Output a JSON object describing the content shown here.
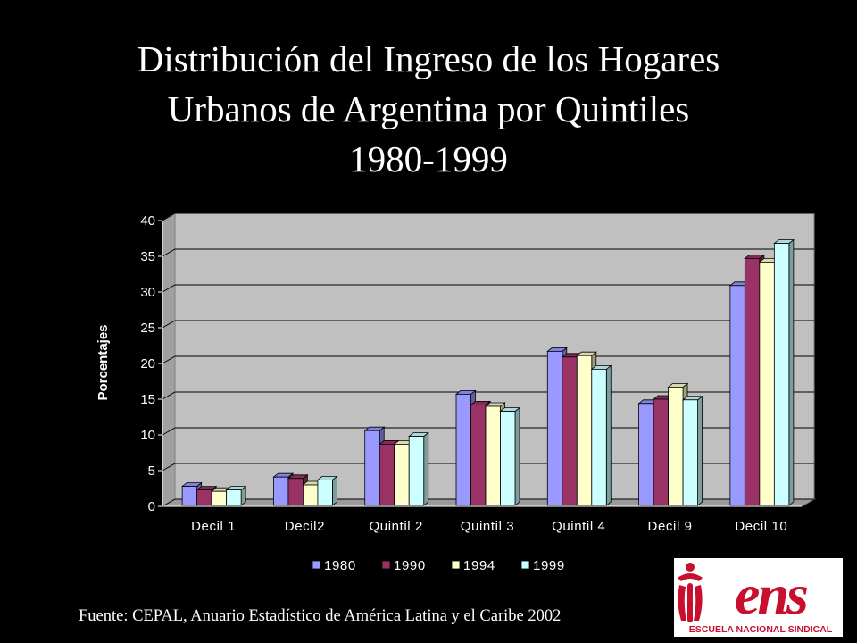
{
  "title_lines": [
    "Distribución del Ingreso de los Hogares",
    "Urbanos de Argentina por Quintiles",
    "1980-1999"
  ],
  "chart_data": {
    "type": "bar",
    "title": "Distribución del Ingreso de los Hogares Urbanos de Argentina por Quintiles 1980-1999",
    "xlabel": "",
    "ylabel": "Porcentajes",
    "ylim": [
      0,
      40
    ],
    "yticks": [
      0,
      5,
      10,
      15,
      20,
      25,
      30,
      35,
      40
    ],
    "grid": true,
    "legend_position": "bottom",
    "categories": [
      "Decil 1",
      "Decil2",
      "Quintil 2",
      "Quintil 3",
      "Quintil 4",
      "Decil 9",
      "Decil 10"
    ],
    "series": [
      {
        "name": "1980",
        "color": "#9999ff",
        "values": [
          2.8,
          4.1,
          10.6,
          15.7,
          21.7,
          14.4,
          30.9
        ]
      },
      {
        "name": "1990",
        "color": "#993366",
        "values": [
          2.3,
          3.9,
          8.7,
          14.2,
          20.9,
          15.0,
          34.7
        ]
      },
      {
        "name": "1994",
        "color": "#ffffcc",
        "values": [
          2.1,
          3.0,
          8.7,
          14.0,
          21.1,
          16.7,
          34.2
        ]
      },
      {
        "name": "1999",
        "color": "#ccffff",
        "values": [
          2.3,
          3.7,
          9.8,
          13.3,
          19.2,
          14.9,
          36.8
        ]
      }
    ]
  },
  "colors": {
    "background": "#000000",
    "plot_area": "#c0c0c0",
    "logo_red": "#c8102e",
    "logo_bg": "#ffffff"
  },
  "source": "Fuente: CEPAL, Anuario Estadístico de América Latina y el Caribe 2002",
  "logo": {
    "word": "ens",
    "caption": "ESCUELA NACIONAL SINDICAL"
  }
}
